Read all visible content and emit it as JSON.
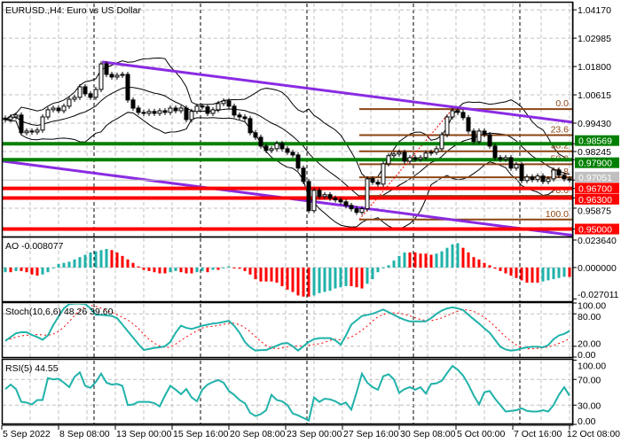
{
  "window": {
    "title": "EURUSD.,H4:  Euro vs US Dollar"
  },
  "colors": {
    "background": "#ffffff",
    "grid": "#c0c0c0",
    "bull_body": "#ffffff",
    "bear_body": "#000000",
    "bollinger": "#000000",
    "channel": "#8a2be2",
    "support_green": "#008000",
    "resistance_red": "#ff0000",
    "current_price": "#c0c0c0",
    "fibonacci": "#8b4513",
    "ao_up": "#20b2aa",
    "ao_down": "#ff0000",
    "stoch_main": "#20b2aa",
    "stoch_signal": "#ff0000",
    "rsi": "#20b2aa"
  },
  "chart_data": [
    {
      "type": "candlestick",
      "title": "EURUSD.,H4:  Euro vs US Dollar",
      "timeframe": "H4",
      "ylim": [
        0.9465,
        1.0447
      ],
      "grid": true,
      "y_tick_labels": [
        "1.04170",
        "1.02985",
        "1.01800",
        "1.00615",
        "0.99430",
        "0.98245",
        "0.95875"
      ],
      "y_ticks": [
        1.0417,
        1.02985,
        1.018,
        1.00615,
        0.9943,
        0.98245,
        0.95875
      ],
      "x_tick_labels": [
        "5 Sep 2022",
        "8 Sep 08:00",
        "13 Sep 00:00",
        "15 Sep 16:00",
        "20 Sep 08:00",
        "23 Sep 00:00",
        "27 Sep 16:00",
        "30 Sep 08:00",
        "5 Oct 00:00",
        "7 Oct 16:00",
        "12 Oct 08:00"
      ],
      "close": [
        0.9958,
        0.9969,
        0.9977,
        0.9903,
        0.991,
        0.9906,
        0.9914,
        0.9969,
        0.9999,
        1.0006,
        0.9995,
        1.0014,
        1.0043,
        1.0051,
        1.0095,
        1.0066,
        1.0051,
        1.0084,
        1.0191,
        1.0147,
        1.0136,
        1.0143,
        1.0147,
        1.004,
        1.0006,
        0.9988,
        0.9984,
        0.9992,
        0.9984,
        0.9995,
        0.9988,
        1.0006,
        0.9995,
        1.0006,
        0.9958,
        0.9992,
        1.0014,
        1.0011,
        0.9984,
        0.9999,
        1.0025,
        1.0036,
        1.0014,
        0.9977,
        0.9969,
        0.9962,
        0.9903,
        0.9884,
        0.9847,
        0.9829,
        0.9836,
        0.9858,
        0.9836,
        0.9821,
        0.981,
        0.9755,
        0.9699,
        0.9577,
        0.9662,
        0.9636,
        0.9644,
        0.9629,
        0.9622,
        0.9614,
        0.9599,
        0.9585,
        0.957,
        0.9585,
        0.971,
        0.9696,
        0.9688,
        0.9773,
        0.9807,
        0.9814,
        0.9821,
        0.9784,
        0.9799,
        0.9792,
        0.9799,
        0.9818,
        0.9821,
        0.9836,
        0.9895,
        0.9969,
        0.9995,
        0.9988,
        0.9966,
        0.991,
        0.9866,
        0.991,
        0.9895,
        0.9847,
        0.9799,
        0.9792,
        0.9799,
        0.9755,
        0.977,
        0.9703,
        0.9718,
        0.9707,
        0.9722,
        0.9699,
        0.971,
        0.9747,
        0.9725,
        0.971,
        0.9705
      ],
      "current_price": {
        "value": 0.97051,
        "label": "0.97051"
      },
      "horizontal_levels": [
        {
          "value": 0.98569,
          "label": "0.98569",
          "color": "#008000"
        },
        {
          "value": 0.979,
          "label": "0.97900",
          "color": "#008000"
        },
        {
          "value": 0.967,
          "label": "0.96700",
          "color": "#ff0000"
        },
        {
          "value": 0.963,
          "label": "0.96300",
          "color": "#ff0000"
        },
        {
          "value": 0.95,
          "label": "0.95000",
          "color": "#ff0000"
        }
      ],
      "channel_lines": [
        {
          "from": {
            "bar": 18.2,
            "price": 1.0199
          },
          "to": {
            "bar": 106.5,
            "price": 0.9947
          }
        },
        {
          "from": {
            "bar": -0.5,
            "price": 0.9784
          },
          "to": {
            "bar": 106.5,
            "price": 0.9474
          }
        }
      ],
      "fibonacci": {
        "high": 1.0002,
        "low": 0.954,
        "low_bar": 66.5,
        "high_bar": 84,
        "levels": [
          {
            "ratio": 0.0,
            "label": "0.0"
          },
          {
            "ratio": 0.236,
            "label": "23.6"
          },
          {
            "ratio": 0.382,
            "label": "38.2"
          },
          {
            "ratio": 0.5,
            "label": "50.0"
          },
          {
            "ratio": 0.618,
            "label": "61.8"
          },
          {
            "ratio": 0.786,
            "label": "78.6"
          },
          {
            "ratio": 1.0,
            "label": "100.0"
          }
        ]
      }
    },
    {
      "type": "bar",
      "label": "AO -0.008077",
      "ylim": [
        -0.029,
        0.0259
      ],
      "y_tick_labels": [
        "0.023640",
        "0.000000",
        "-0.027011"
      ],
      "y_ticks": [
        0.02364,
        0.0,
        -0.027011
      ],
      "values": [
        -0.004,
        -0.004,
        -0.003,
        -0.003,
        -0.004,
        -0.006,
        -0.007,
        -0.006,
        -0.004,
        0.0,
        0.003,
        0.004,
        0.005,
        0.007,
        0.009,
        0.011,
        0.013,
        0.014,
        0.015,
        0.016,
        0.015,
        0.013,
        0.01,
        0.007,
        0.004,
        0.001,
        -0.002,
        -0.003,
        -0.004,
        -0.005,
        -0.005,
        -0.004,
        -0.003,
        -0.004,
        -0.005,
        -0.005,
        -0.004,
        -0.003,
        -0.004,
        -0.002,
        -0.002,
        0.0,
        0.001,
        0.0,
        -0.001,
        -0.003,
        -0.006,
        -0.01,
        -0.012,
        -0.012,
        -0.012,
        -0.013,
        -0.016,
        -0.019,
        -0.021,
        -0.024,
        -0.025,
        -0.025,
        -0.024,
        -0.022,
        -0.021,
        -0.02,
        -0.018,
        -0.017,
        -0.016,
        -0.016,
        -0.017,
        -0.018,
        -0.014,
        -0.01,
        -0.004,
        0.0,
        0.002,
        0.006,
        0.01,
        0.013,
        0.013,
        0.013,
        0.012,
        0.012,
        0.011,
        0.012,
        0.014,
        0.017,
        0.02,
        0.021,
        0.017,
        0.013,
        0.009,
        0.007,
        0.004,
        0.002,
        -0.001,
        -0.003,
        -0.005,
        -0.007,
        -0.009,
        -0.011,
        -0.013,
        -0.013,
        -0.013,
        -0.012,
        -0.011,
        -0.01,
        -0.009,
        -0.008,
        -0.008077
      ]
    },
    {
      "type": "line",
      "label": "Stoch(10,6,6) 48.26 39.60",
      "ylim": [
        0,
        100
      ],
      "y_tick_labels": [
        "100.00",
        "80.00",
        "20.00",
        "0.00"
      ],
      "y_ticks": [
        100,
        80,
        20,
        0
      ],
      "main": [
        30,
        37,
        44,
        46,
        46,
        41,
        37,
        32,
        40,
        59,
        75,
        90,
        98,
        99,
        99,
        98,
        90,
        78,
        78,
        77,
        76,
        72,
        60,
        48,
        36,
        24,
        13,
        15,
        17,
        18,
        20,
        28,
        45,
        58,
        54,
        52,
        55,
        58,
        60,
        62,
        63,
        65,
        67,
        58,
        45,
        28,
        18,
        12,
        13,
        13,
        17,
        21,
        25,
        26,
        20,
        12,
        20,
        28,
        33,
        35,
        35,
        35,
        31,
        23,
        40,
        60,
        68,
        76,
        78,
        80,
        84,
        88,
        83,
        78,
        73,
        69,
        66,
        66,
        66,
        66,
        72,
        80,
        86,
        90,
        92,
        90,
        87,
        78,
        70,
        62,
        53,
        45,
        32,
        19,
        14,
        12,
        13,
        16,
        18,
        19,
        19,
        18,
        22,
        33,
        40,
        43,
        48.26
      ]
    },
    {
      "type": "line",
      "label": "RSI(5) 44.55",
      "ylim": [
        0,
        100
      ],
      "y_tick_labels": [
        "100.00",
        "70.00",
        "30.00",
        "0.00"
      ],
      "y_ticks": [
        100,
        70,
        30,
        0
      ],
      "values": [
        55,
        62,
        55,
        35,
        34,
        31,
        38,
        38,
        72,
        70,
        71,
        65,
        58,
        74,
        81,
        60,
        57,
        66,
        79,
        65,
        62,
        63,
        60,
        30,
        31,
        35,
        35,
        35,
        33,
        28,
        45,
        60,
        54,
        47,
        55,
        42,
        36,
        54,
        62,
        66,
        69,
        65,
        52,
        46,
        38,
        33,
        18,
        13,
        16,
        22,
        46,
        38,
        36,
        30,
        17,
        14,
        10,
        6,
        42,
        35,
        40,
        39,
        36,
        31,
        34,
        23,
        50,
        79,
        65,
        58,
        54,
        75,
        78,
        70,
        49,
        55,
        58,
        54,
        58,
        48,
        63,
        64,
        68,
        80,
        91,
        85,
        76,
        62,
        45,
        31,
        50,
        52,
        40,
        30,
        20,
        21,
        22,
        25,
        21,
        20,
        20,
        22,
        20,
        30,
        46,
        58,
        44.55
      ]
    }
  ]
}
